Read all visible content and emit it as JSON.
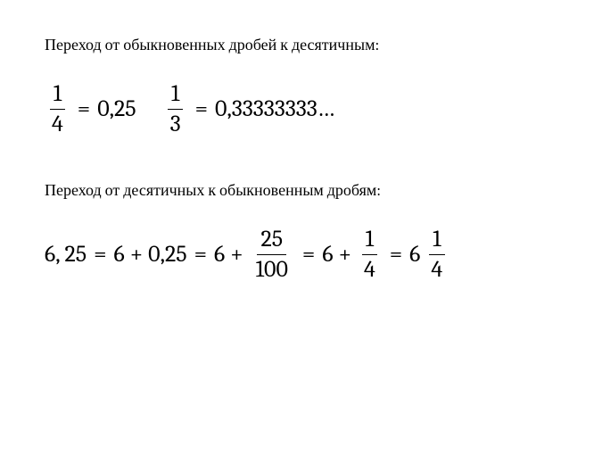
{
  "heading1": "Переход от обыкновенных дробей к десятичным:",
  "heading2": "Переход от десятичных к обыкновенным дробям:",
  "eq1": {
    "frac1_num": "1",
    "frac1_den": "4",
    "result1": "0,25",
    "frac2_num": "1",
    "frac2_den": "3",
    "result2": "0,33333333…"
  },
  "eq2": {
    "lhs": "6, 25",
    "step1_a": "6",
    "step1_b": "0,25",
    "step2_a": "6",
    "step2_frac_num": "25",
    "step2_frac_den": "100",
    "step3_a": "6",
    "step3_frac_num": "1",
    "step3_frac_den": "4",
    "result_int": "6",
    "result_frac_num": "1",
    "result_frac_den": "4"
  },
  "symbols": {
    "eq": "=",
    "plus": "+"
  },
  "style": {
    "text_color": "#000000",
    "background": "#ffffff",
    "heading_fontsize": 18,
    "equation_fontsize": 26
  }
}
